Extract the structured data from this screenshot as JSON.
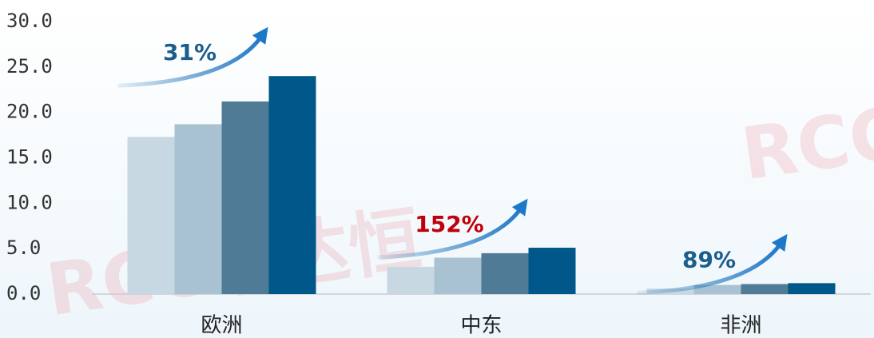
{
  "chart_data": {
    "type": "bar",
    "categories": [
      "欧洲",
      "中东",
      "非洲"
    ],
    "series": [
      {
        "color": "#c8d8e2",
        "values": [
          17.3,
          3.0,
          0.6
        ]
      },
      {
        "color": "#a9c2d2",
        "values": [
          18.7,
          4.0,
          1.0
        ]
      },
      {
        "color": "#4f7b96",
        "values": [
          21.2,
          4.5,
          1.1
        ]
      },
      {
        "color": "#00578a",
        "values": [
          24.0,
          5.1,
          1.2
        ]
      }
    ],
    "ylim": [
      0,
      30
    ],
    "yticks": [
      {
        "value": 0,
        "label": "0.0"
      },
      {
        "value": 5,
        "label": "5.0"
      },
      {
        "value": 10,
        "label": "10.0"
      },
      {
        "value": 15,
        "label": "15.0"
      },
      {
        "value": 20,
        "label": "20.0"
      },
      {
        "value": 25,
        "label": "25.0"
      },
      {
        "value": 30,
        "label": "30.0"
      }
    ],
    "annotations": [
      {
        "text": "31%",
        "color": "#1b5d8c"
      },
      {
        "text": "152%",
        "color": "#c0000a"
      },
      {
        "text": "89%",
        "color": "#1b5d8c"
      }
    ],
    "watermarks": [
      "RCC瑞达恒",
      "RCC"
    ]
  }
}
